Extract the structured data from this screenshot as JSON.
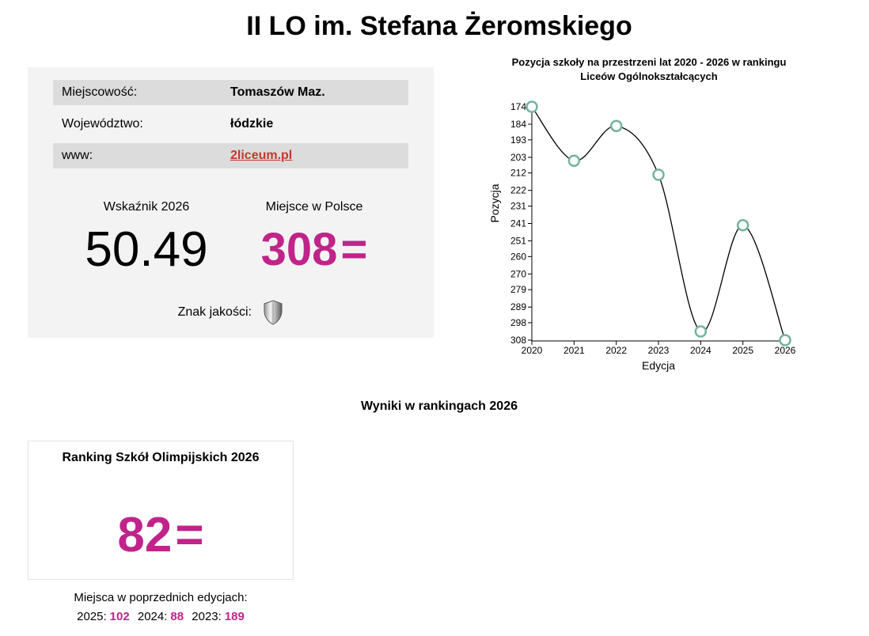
{
  "page": {
    "title": "II LO im. Stefana Żeromskiego"
  },
  "info": {
    "rows": [
      {
        "label": "Miejscowość:",
        "value": "Tomaszów Maz."
      },
      {
        "label": "Województwo:",
        "value": "łódzkie"
      },
      {
        "label": "www:",
        "value": "2liceum.pl"
      }
    ],
    "indicator_label": "Wskaźnik 2026",
    "indicator_value": "50.49",
    "rank_label": "Miejsce w Polsce",
    "rank_value": "308",
    "rank_suffix": "=",
    "quality_label": "Znak jakości:",
    "quality_icon": "shield-icon",
    "accent_color": "#c0248a",
    "link_color": "#c0392b"
  },
  "chart_data": {
    "type": "line",
    "title": "Pozycja szkoły na przestrzeni lat 2020 - 2026 w rankingu Liceów Ogólnokształcących",
    "xlabel": "Edycja",
    "ylabel": "Pozycja",
    "x": [
      "2020",
      "2021",
      "2022",
      "2023",
      "2024",
      "2025",
      "2026"
    ],
    "series": [
      {
        "values": [
          174,
          205,
          185,
          213,
          303,
          242,
          308
        ]
      }
    ],
    "y_ticks": [
      174,
      184,
      193,
      203,
      212,
      222,
      231,
      241,
      251,
      260,
      270,
      279,
      289,
      298,
      308
    ],
    "ylim": [
      174,
      308
    ],
    "y_inverted": true,
    "grid": false,
    "point_color": "#74b3a0"
  },
  "results": {
    "title": "Wyniki w rankingach 2026",
    "card_title": "Ranking Szkół Olimpijskich 2026",
    "card_value": "82",
    "card_suffix": "=",
    "previous_label": "Miejsca w poprzednich edycjach:",
    "previous": [
      {
        "year": "2025:",
        "rank": "102"
      },
      {
        "year": "2024:",
        "rank": "88"
      },
      {
        "year": "2023:",
        "rank": "189"
      }
    ]
  }
}
